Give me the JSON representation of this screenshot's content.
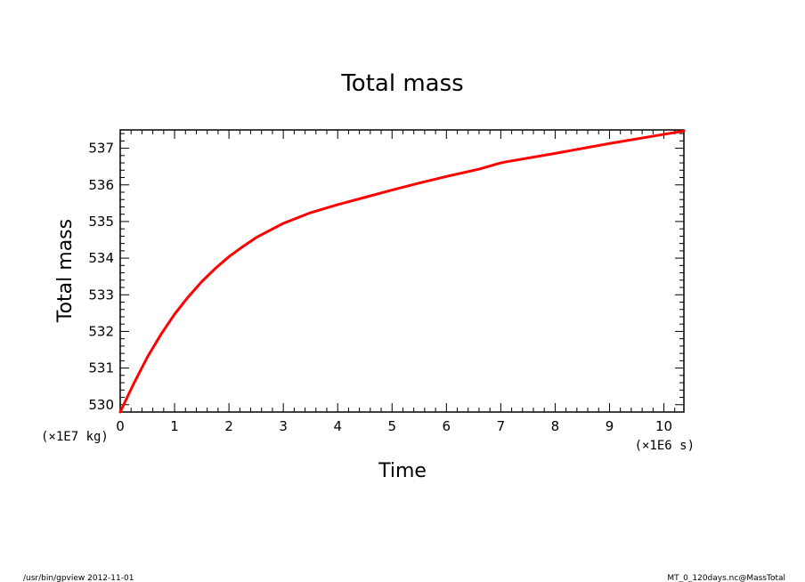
{
  "chart_data": {
    "type": "line",
    "title": "Total mass",
    "xlabel": "Time",
    "ylabel": "Total mass",
    "x_unit": "(×1E6 s)",
    "y_unit": "(×1E7 kg)",
    "xlim": [
      0,
      10.368
    ],
    "ylim": [
      529.8,
      537.5
    ],
    "xticks": [
      0,
      1,
      2,
      3,
      4,
      5,
      6,
      7,
      8,
      9,
      10
    ],
    "yticks": [
      530,
      531,
      532,
      533,
      534,
      535,
      536,
      537
    ],
    "grid": false,
    "series": [
      {
        "color": "#ff0000",
        "x": [
          0,
          0.25,
          0.5,
          0.75,
          1.0,
          1.25,
          1.5,
          1.75,
          2.0,
          2.25,
          2.5,
          2.6,
          3.0,
          3.5,
          4.0,
          4.5,
          5.0,
          5.5,
          6.0,
          6.6,
          7.0,
          7.1,
          8.0,
          9.0,
          10.0,
          10.368
        ],
        "y": [
          529.8,
          530.58,
          531.3,
          531.92,
          532.47,
          532.94,
          533.36,
          533.72,
          534.04,
          534.31,
          534.56,
          534.64,
          534.95,
          535.24,
          535.46,
          535.66,
          535.86,
          536.05,
          536.23,
          536.43,
          536.6,
          536.63,
          536.86,
          537.13,
          537.38,
          537.47
        ]
      }
    ]
  },
  "footer": {
    "left": "/usr/bin/gpview  2012-11-01",
    "right": "MT_0_120days.nc@MassTotal"
  }
}
